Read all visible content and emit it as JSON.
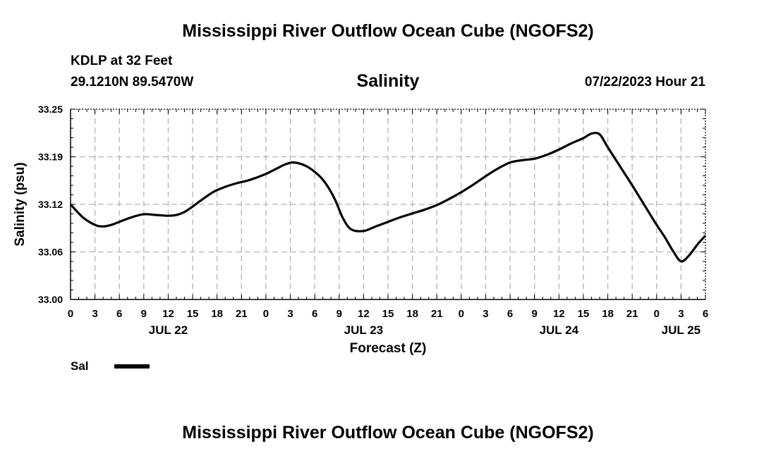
{
  "header": {
    "title": "Mississippi River Outflow Ocean Cube (NGOFS2)",
    "station": "KDLP at 32 Feet",
    "coords": "29.1210N  89.5470W",
    "variable": "Salinity",
    "datetime": "07/22/2023 Hour 21"
  },
  "footer": {
    "title": "Mississippi River Outflow Ocean Cube (NGOFS2)"
  },
  "legend": {
    "label": "Sal"
  },
  "chart_data": {
    "type": "line",
    "xlabel": "Forecast (Z)",
    "ylabel": "Salinity (psu)",
    "xlim": [
      0,
      78
    ],
    "ylim": [
      33.0,
      33.25
    ],
    "yticks": [
      "33.00",
      "33.06",
      "33.12",
      "33.19",
      "33.25"
    ],
    "ytick_values": [
      33.0,
      33.0625,
      33.125,
      33.1875,
      33.25
    ],
    "xtick_labels": [
      "0",
      "3",
      "6",
      "9",
      "12",
      "15",
      "18",
      "21",
      "0",
      "3",
      "6",
      "9",
      "12",
      "15",
      "18",
      "21",
      "0",
      "3",
      "6",
      "9",
      "12",
      "15",
      "18",
      "21",
      "0",
      "3",
      "6"
    ],
    "date_labels": [
      {
        "hour": 12,
        "label": "JUL 22"
      },
      {
        "hour": 36,
        "label": "JUL 23"
      },
      {
        "hour": 60,
        "label": "JUL 24"
      },
      {
        "hour": 75,
        "label": "JUL 25"
      }
    ],
    "grid": true,
    "series": [
      {
        "name": "Sal",
        "color": "#000000",
        "x": [
          0,
          1.5,
          3,
          4,
          5,
          6,
          7.5,
          9,
          10.5,
          12,
          13,
          14,
          15,
          16,
          17.5,
          19,
          20.5,
          22,
          24,
          25.5,
          26.5,
          27.5,
          29,
          30.5,
          31.5,
          32.5,
          33.5,
          34.5,
          36,
          37.5,
          39,
          40.5,
          42,
          43.5,
          45,
          46.5,
          48,
          49.5,
          51,
          52.5,
          54,
          55.5,
          57,
          58.5,
          60,
          61.5,
          63,
          64,
          65,
          66,
          67.5,
          69,
          70.5,
          72,
          73,
          74,
          75,
          76,
          77,
          78
        ],
        "y": [
          33.125,
          33.108,
          33.098,
          33.096,
          33.098,
          33.102,
          33.108,
          33.112,
          33.111,
          33.11,
          33.111,
          33.115,
          33.122,
          33.13,
          33.141,
          33.148,
          33.153,
          33.157,
          33.165,
          33.173,
          33.178,
          33.18,
          33.175,
          33.163,
          33.15,
          33.131,
          33.106,
          33.092,
          33.09,
          33.096,
          33.102,
          33.108,
          33.113,
          33.118,
          33.124,
          33.132,
          33.141,
          33.151,
          33.162,
          33.172,
          33.18,
          33.183,
          33.185,
          33.19,
          33.197,
          33.205,
          33.212,
          33.218,
          33.217,
          33.2,
          33.175,
          33.15,
          33.124,
          33.098,
          33.082,
          33.064,
          33.05,
          33.058,
          33.072,
          33.084
        ]
      }
    ]
  }
}
